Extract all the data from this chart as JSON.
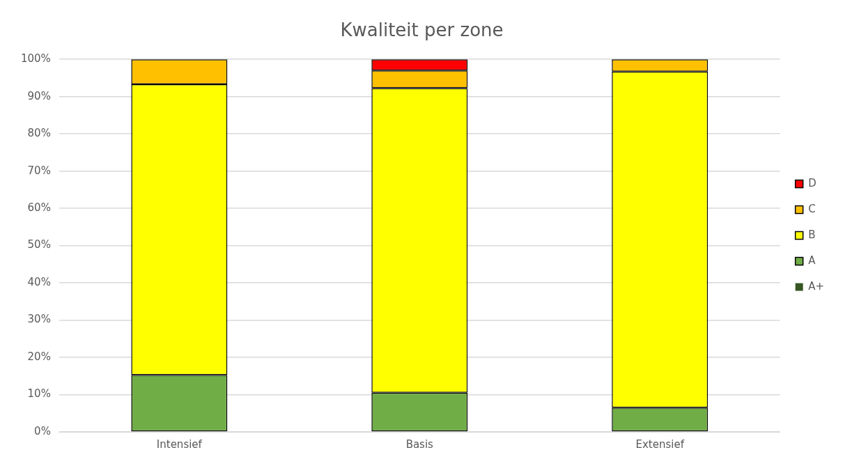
{
  "chart_data": {
    "type": "bar",
    "title": "Kwaliteit per zone",
    "categories": [
      "Intensief",
      "Basis",
      "Extensief"
    ],
    "stacked": true,
    "series": [
      {
        "name": "A+",
        "color": "#375623",
        "values": [
          0,
          0,
          0
        ]
      },
      {
        "name": "A",
        "color": "#70ad47",
        "values": [
          15.3,
          10.5,
          6.5
        ]
      },
      {
        "name": "B",
        "color": "#ffff00",
        "values": [
          78,
          81.8,
          90.2
        ]
      },
      {
        "name": "C",
        "color": "#ffc000",
        "values": [
          6.7,
          4.7,
          3.3
        ]
      },
      {
        "name": "D",
        "color": "#ff0000",
        "values": [
          0,
          3,
          0
        ]
      }
    ],
    "ylim": [
      0,
      100
    ],
    "yticks": [
      {
        "value": 0,
        "label": "0%"
      },
      {
        "value": 10,
        "label": "10%"
      },
      {
        "value": 20,
        "label": "20%"
      },
      {
        "value": 30,
        "label": "30%"
      },
      {
        "value": 40,
        "label": "40%"
      },
      {
        "value": 50,
        "label": "50%"
      },
      {
        "value": 60,
        "label": "60%"
      },
      {
        "value": 70,
        "label": "70%"
      },
      {
        "value": 80,
        "label": "80%"
      },
      {
        "value": 90,
        "label": "90%"
      },
      {
        "value": 100,
        "label": "100%"
      }
    ],
    "grid": "y",
    "legend": "right"
  }
}
